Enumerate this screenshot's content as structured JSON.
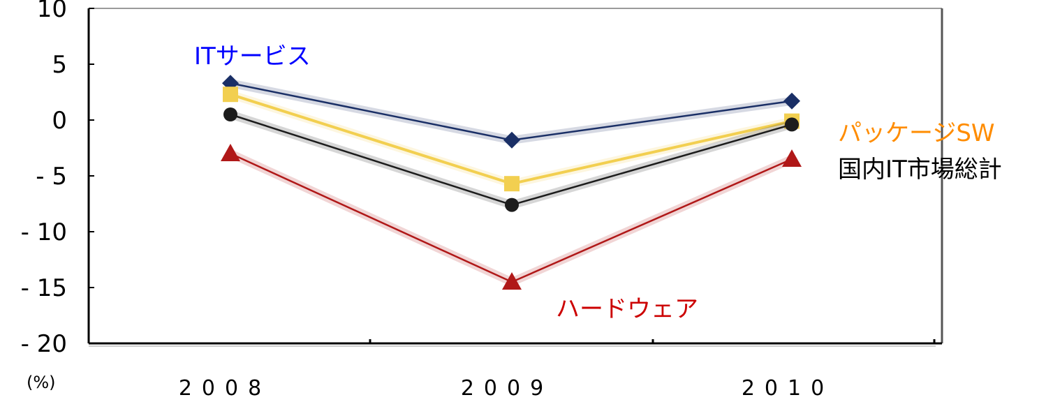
{
  "chart_data": {
    "type": "line",
    "x": [
      "2008",
      "2009",
      "2010"
    ],
    "ylim": [
      -20,
      10
    ],
    "yticks": [
      "10",
      "5",
      "0",
      "-5",
      "-10",
      "-15",
      "-20"
    ],
    "unit": "(%)",
    "grid": false,
    "series": [
      {
        "name": "ITサービス",
        "values": [
          3.3,
          -1.8,
          1.7
        ],
        "color": "#1a2f66",
        "label_color": "#0000ff",
        "marker": "diamond"
      },
      {
        "name": "パッケージSW",
        "values": [
          2.3,
          -5.7,
          -0.1
        ],
        "color": "#f2cf50",
        "label_color": "#ff8c00",
        "marker": "square"
      },
      {
        "name": "国内IT市場総計",
        "values": [
          0.5,
          -7.6,
          -0.4
        ],
        "color": "#1c1c1c",
        "label_color": "#000000",
        "marker": "circle"
      },
      {
        "name": "ハードウェア",
        "values": [
          -3.0,
          -14.5,
          -3.5
        ],
        "color": "#b01818",
        "label_color": "#cc0000",
        "marker": "triangle"
      }
    ]
  }
}
